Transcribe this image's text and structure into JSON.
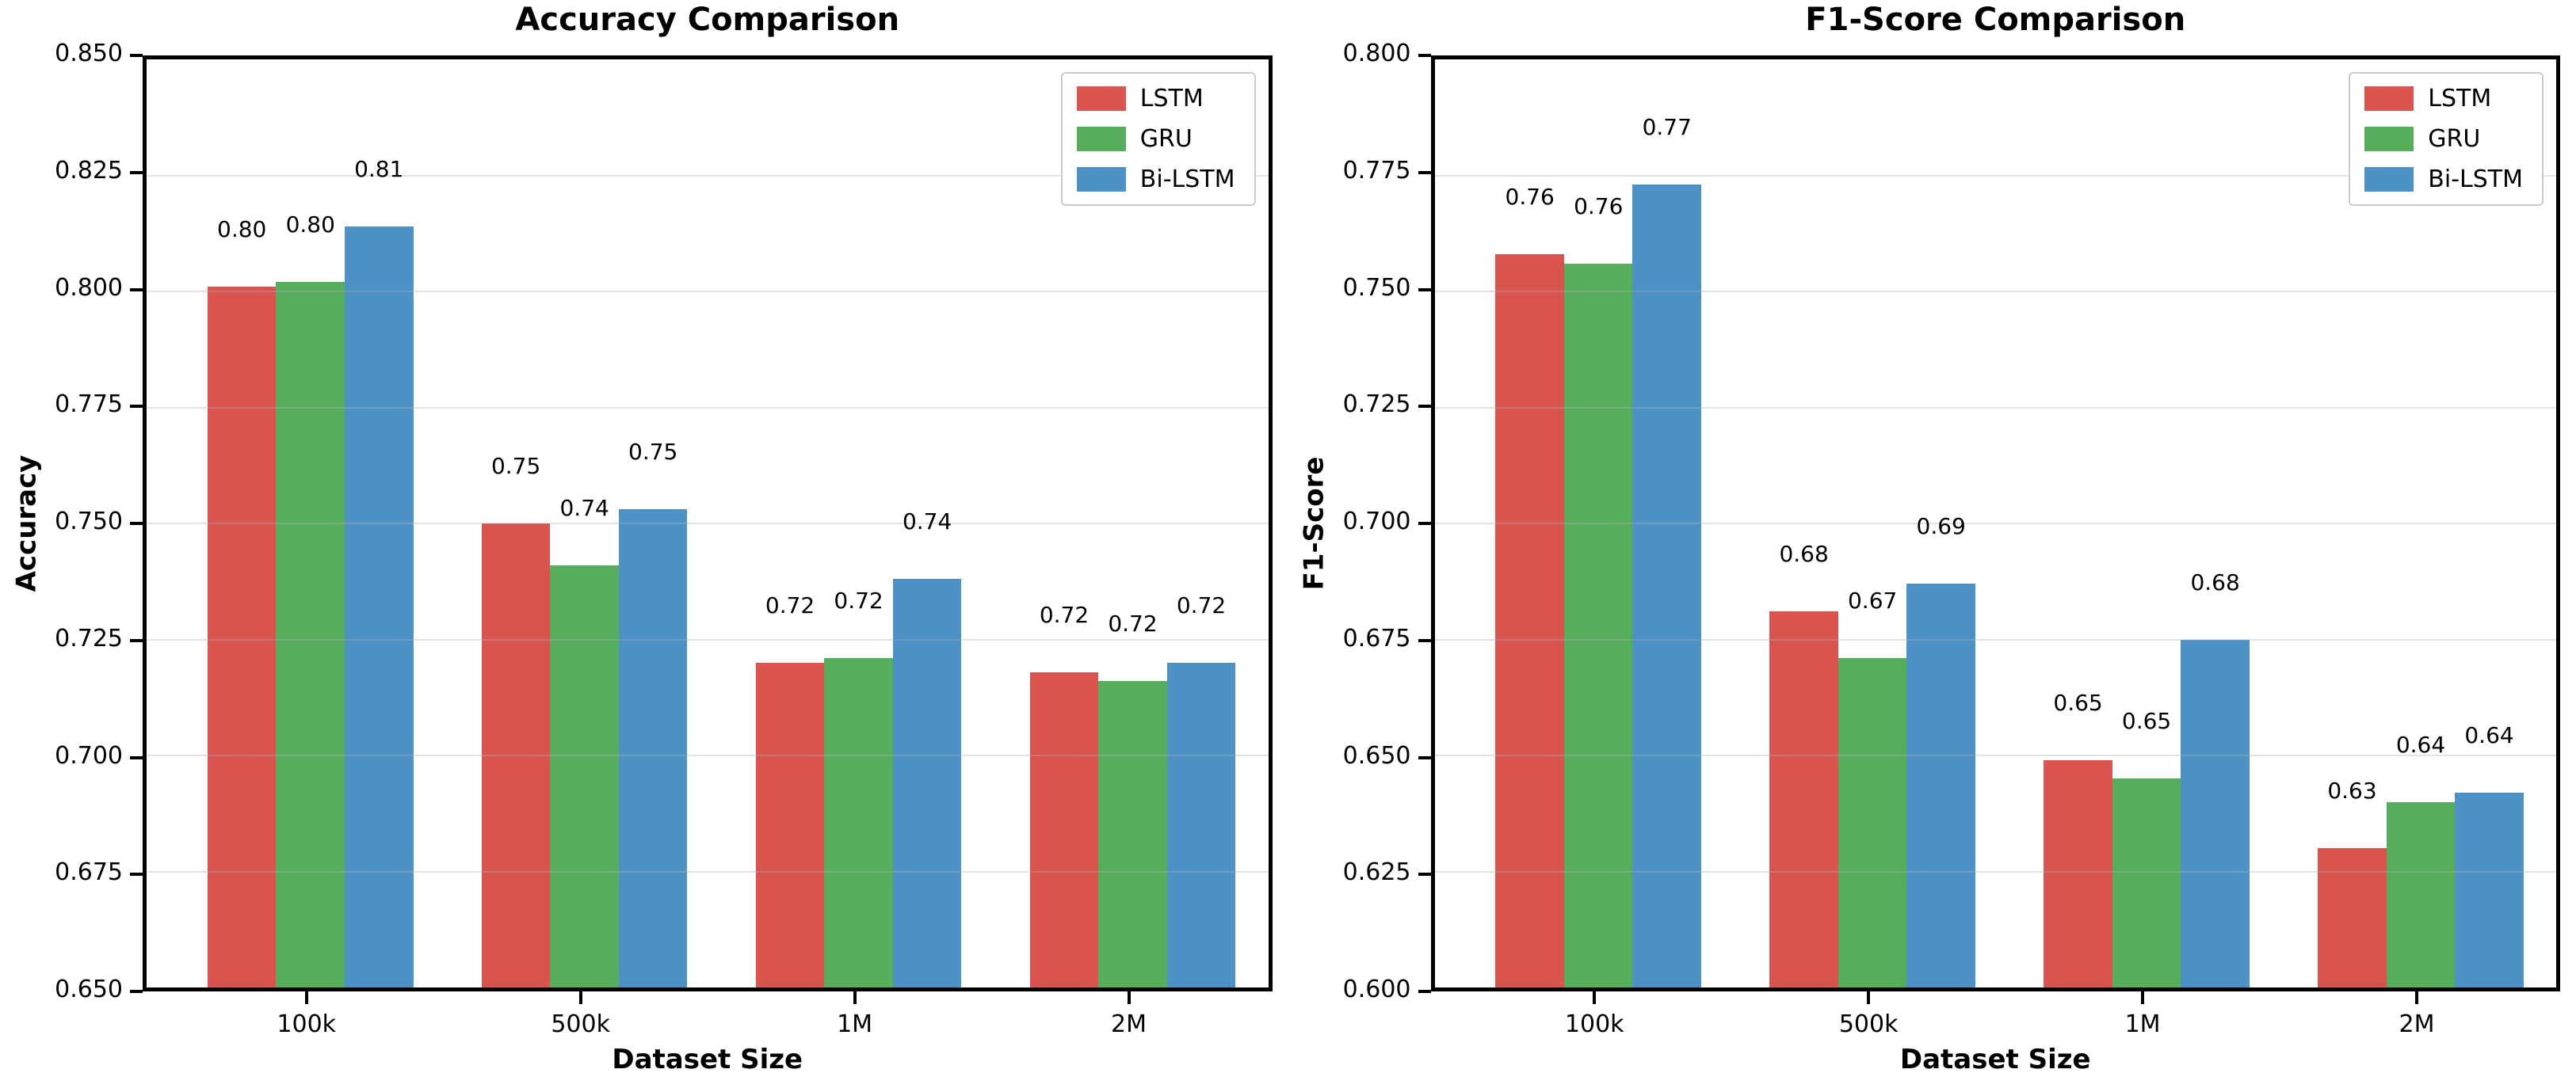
{
  "figure": {
    "background": "#ffffff"
  },
  "colors": {
    "lstm": "#d9534f",
    "gru": "#56ae5c",
    "bilstm": "#4d92c6",
    "grid": "rgba(176,176,176,0.35)",
    "spine": "#000000",
    "legend_border": "#cccccc"
  },
  "chart_data": [
    {
      "type": "bar",
      "title": "Accuracy Comparison",
      "xlabel": "Dataset Size",
      "ylabel": "Accuracy",
      "ylim": [
        0.65,
        0.85
      ],
      "yticks": [
        "0.850",
        "0.825",
        "0.800",
        "0.775",
        "0.750",
        "0.725",
        "0.700",
        "0.675",
        "0.650"
      ],
      "categories": [
        "100k",
        "500k",
        "1M",
        "2M"
      ],
      "grid": "horizontal",
      "legend_position": "upper right",
      "series": [
        {
          "name": "LSTM",
          "color_key": "lstm",
          "values": [
            0.801,
            0.75,
            0.72,
            0.718
          ],
          "labels": [
            "0.80",
            "0.75",
            "0.72",
            "0.72"
          ]
        },
        {
          "name": "GRU",
          "color_key": "gru",
          "values": [
            0.802,
            0.741,
            0.721,
            0.716
          ],
          "labels": [
            "0.80",
            "0.74",
            "0.72",
            "0.72"
          ]
        },
        {
          "name": "Bi-LSTM",
          "color_key": "bilstm",
          "values": [
            0.814,
            0.753,
            0.738,
            0.72
          ],
          "labels": [
            "0.81",
            "0.75",
            "0.74",
            "0.72"
          ]
        }
      ]
    },
    {
      "type": "bar",
      "title": "F1-Score Comparison",
      "xlabel": "Dataset Size",
      "ylabel": "F1-Score",
      "ylim": [
        0.6,
        0.8
      ],
      "yticks": [
        "0.800",
        "0.775",
        "0.750",
        "0.725",
        "0.700",
        "0.675",
        "0.650",
        "0.625",
        "0.600"
      ],
      "categories": [
        "100k",
        "500k",
        "1M",
        "2M"
      ],
      "grid": "horizontal",
      "legend_position": "upper right",
      "series": [
        {
          "name": "LSTM",
          "color_key": "lstm",
          "values": [
            0.758,
            0.681,
            0.649,
            0.63
          ],
          "labels": [
            "0.76",
            "0.68",
            "0.65",
            "0.63"
          ]
        },
        {
          "name": "GRU",
          "color_key": "gru",
          "values": [
            0.756,
            0.671,
            0.645,
            0.64
          ],
          "labels": [
            "0.76",
            "0.67",
            "0.65",
            "0.64"
          ]
        },
        {
          "name": "Bi-LSTM",
          "color_key": "bilstm",
          "values": [
            0.773,
            0.687,
            0.675,
            0.642
          ],
          "labels": [
            "0.77",
            "0.69",
            "0.68",
            "0.64"
          ]
        }
      ]
    }
  ]
}
